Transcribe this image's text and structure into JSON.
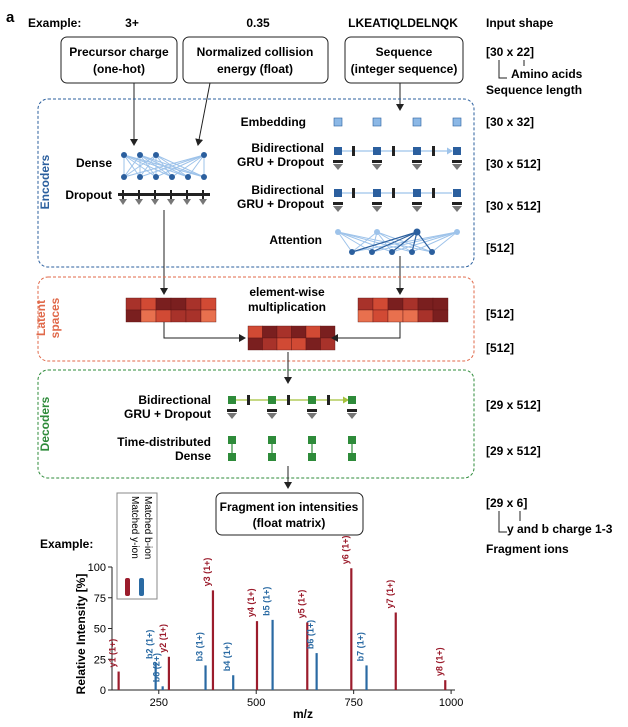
{
  "panel_letter": "a",
  "example_label": "Example:",
  "example_values": {
    "charge": "3+",
    "energy": "0.35",
    "sequence": "LKEATIQLDELNQK"
  },
  "input_shape_header": "Input shape",
  "inputs": {
    "charge": [
      "Precursor charge",
      "(one-hot)"
    ],
    "energy": [
      "Normalized collision",
      "energy (float)"
    ],
    "sequence": [
      "Sequence",
      "(integer sequence)"
    ]
  },
  "input_shape": {
    "value": "[30 x 22]",
    "amino": "Amino acids",
    "seqlen": "Sequence length"
  },
  "sections": {
    "encoders": "Encoders",
    "latent": [
      "Latent",
      "spaces"
    ],
    "decoders": "Decoders"
  },
  "layers": {
    "dense": "Dense",
    "dropout": "Dropout",
    "embedding": "Embedding",
    "gru": [
      "Bidirectional",
      "GRU + Dropout"
    ],
    "attention": "Attention",
    "multiply": [
      "element-wise",
      "multiplication"
    ],
    "timedist": [
      "Time-distributed",
      "Dense"
    ]
  },
  "shapes": {
    "embedding": "[30 x 32]",
    "gru1": "[30 x 512]",
    "gru2": "[30 x 512]",
    "attention": "[512]",
    "latent1": "[512]",
    "latent2": "[512]",
    "dec_gru": "[29 x 512]",
    "dec_dense": "[29 x 512]",
    "output": "[29 x 6]"
  },
  "output_box": [
    "Fragment ion intensities",
    "(float matrix)"
  ],
  "output_shape": {
    "charge": "y and b charge 1-3",
    "ions": "Fragment ions"
  },
  "legend": {
    "y": "Matched y-ion",
    "b": "Matched b-ion"
  },
  "colors": {
    "y_ion": "#9b1c2c",
    "b_ion": "#2a6aa3",
    "encoder": "#2b5f9e",
    "latent": "#e0694a",
    "decoder": "#2e8b3a"
  },
  "chart_data": {
    "type": "bar",
    "xlabel": "m/z",
    "ylabel": "Relative Intensity [%]",
    "xlim": [
      130,
      1010
    ],
    "ylim": [
      0,
      100
    ],
    "xticks": [
      250,
      500,
      750,
      1000
    ],
    "yticks": [
      0,
      25,
      50,
      75,
      100
    ],
    "peaks": [
      {
        "label": "y1 (1+)",
        "mz": 147,
        "intensity": 15,
        "ion": "y"
      },
      {
        "label": "b2 (1+)",
        "mz": 242,
        "intensity": 22,
        "ion": "b"
      },
      {
        "label": "b6 (2+)",
        "mz": 260,
        "intensity": 3,
        "ion": "b"
      },
      {
        "label": "y2 (1+)",
        "mz": 276,
        "intensity": 27,
        "ion": "y"
      },
      {
        "label": "b3 (1+)",
        "mz": 370,
        "intensity": 20,
        "ion": "b"
      },
      {
        "label": "y3 (1+)",
        "mz": 389,
        "intensity": 81,
        "ion": "y"
      },
      {
        "label": "b4 (1+)",
        "mz": 441,
        "intensity": 12,
        "ion": "b"
      },
      {
        "label": "y4 (1+)",
        "mz": 502,
        "intensity": 56,
        "ion": "y"
      },
      {
        "label": "b5 (1+)",
        "mz": 542,
        "intensity": 57,
        "ion": "b"
      },
      {
        "label": "y5 (1+)",
        "mz": 631,
        "intensity": 55,
        "ion": "y"
      },
      {
        "label": "b6 (1+)",
        "mz": 655,
        "intensity": 30,
        "ion": "b"
      },
      {
        "label": "y6 (1+)",
        "mz": 744,
        "intensity": 99,
        "ion": "y"
      },
      {
        "label": "b7 (1+)",
        "mz": 783,
        "intensity": 20,
        "ion": "b"
      },
      {
        "label": "y7 (1+)",
        "mz": 858,
        "intensity": 63,
        "ion": "y"
      },
      {
        "label": "y8 (1+)",
        "mz": 985,
        "intensity": 8,
        "ion": "y"
      }
    ]
  }
}
